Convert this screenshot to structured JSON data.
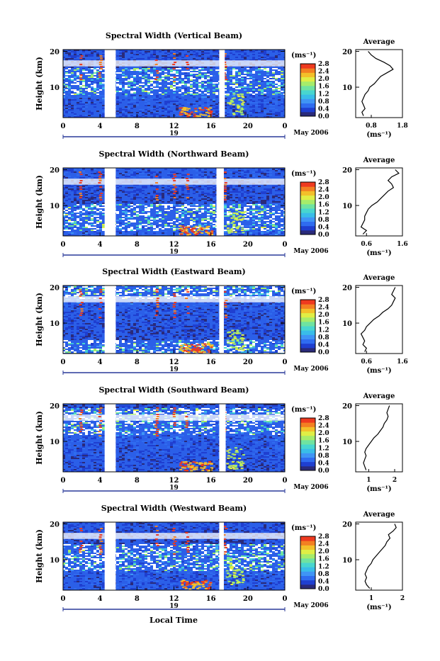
{
  "figure": {
    "xlabel": "Local Time",
    "date_label": "May 2006",
    "day_label": "19",
    "colorbar_unit": "(ms⁻¹)",
    "colorbar_ticks": [
      "0.0",
      "0.4",
      "0.8",
      "1.2",
      "1.6",
      "2.0",
      "2.4",
      "2.8"
    ],
    "avg_title": "Average",
    "avg_xlabel": "(ms⁻¹)",
    "ylabel": "Height (km)"
  },
  "chart_data": [
    {
      "type": "heatmap",
      "title": "Spectral Width (Vertical Beam)",
      "xlabel": "Local Time",
      "ylabel": "Height (km)",
      "x_ticks": [
        "0",
        "4",
        "8",
        "12",
        "16",
        "20",
        "0"
      ],
      "y_ticks": [
        "10",
        "20"
      ],
      "xlim": [
        0,
        24
      ],
      "ylim": [
        1.5,
        20.5
      ],
      "gaps": [
        [
          4.5,
          5.7
        ],
        [
          16.9,
          17.5
        ]
      ],
      "zrange": [
        0.0,
        2.8
      ],
      "average_profile": {
        "x_ticks": [
          "0.8",
          "1.8"
        ],
        "xlim": [
          0.3,
          1.8
        ],
        "height": [
          2,
          3,
          4,
          5,
          6,
          7,
          8,
          9,
          10,
          11,
          12,
          13,
          14,
          15,
          16,
          17,
          18,
          19,
          20
        ],
        "values": [
          0.55,
          0.5,
          0.6,
          0.55,
          0.5,
          0.55,
          0.6,
          0.7,
          0.75,
          0.9,
          1.0,
          1.1,
          1.3,
          1.5,
          1.4,
          1.2,
          0.95,
          0.8,
          0.7
        ]
      }
    },
    {
      "type": "heatmap",
      "title": "Spectral Width (Northward Beam)",
      "xlabel": "Local Time",
      "ylabel": "Height (km)",
      "x_ticks": [
        "0",
        "4",
        "8",
        "12",
        "16",
        "20",
        "0"
      ],
      "y_ticks": [
        "10",
        "20"
      ],
      "xlim": [
        0,
        24
      ],
      "ylim": [
        1.5,
        20.5
      ],
      "gaps": [
        [
          4.5,
          5.7
        ],
        [
          16.6,
          17.4
        ]
      ],
      "zrange": [
        0.0,
        2.8
      ],
      "average_profile": {
        "x_ticks": [
          "0.6",
          "1.6"
        ],
        "xlim": [
          0.3,
          1.6
        ],
        "height": [
          2,
          3,
          4,
          5,
          6,
          7,
          8,
          9,
          10,
          11,
          12,
          13,
          14,
          15,
          16,
          17,
          18,
          19,
          20
        ],
        "values": [
          0.5,
          0.6,
          0.45,
          0.5,
          0.55,
          0.55,
          0.6,
          0.65,
          0.75,
          0.9,
          1.0,
          1.1,
          1.2,
          1.35,
          1.3,
          1.2,
          1.3,
          1.5,
          1.4
        ]
      }
    },
    {
      "type": "heatmap",
      "title": "Spectral Width (Eastward Beam)",
      "xlabel": "Local Time",
      "ylabel": "Height (km)",
      "x_ticks": [
        "0",
        "4",
        "8",
        "12",
        "16",
        "20",
        "0"
      ],
      "y_ticks": [
        "10",
        "20"
      ],
      "xlim": [
        0,
        24
      ],
      "ylim": [
        1.5,
        20.5
      ],
      "gaps": [
        [
          4.5,
          5.7
        ],
        [
          16.9,
          17.4
        ]
      ],
      "zrange": [
        0.0,
        2.8
      ],
      "average_profile": {
        "x_ticks": [
          "0.6",
          "1.6"
        ],
        "xlim": [
          0.3,
          1.6
        ],
        "height": [
          2,
          3,
          4,
          5,
          6,
          7,
          8,
          9,
          10,
          11,
          12,
          13,
          14,
          15,
          16,
          17,
          18,
          19,
          20
        ],
        "values": [
          0.55,
          0.6,
          0.5,
          0.55,
          0.5,
          0.45,
          0.55,
          0.6,
          0.7,
          0.8,
          0.95,
          1.05,
          1.2,
          1.3,
          1.35,
          1.4,
          1.3,
          1.35,
          1.4
        ]
      }
    },
    {
      "type": "heatmap",
      "title": "Spectral Width (Southward Beam)",
      "xlabel": "Local Time",
      "ylabel": "Height (km)",
      "x_ticks": [
        "0",
        "4",
        "8",
        "12",
        "16",
        "20",
        "0"
      ],
      "y_ticks": [
        "10",
        "20"
      ],
      "xlim": [
        0,
        24
      ],
      "ylim": [
        1.5,
        20.5
      ],
      "gaps": [
        [
          4.5,
          5.7
        ],
        [
          16.9,
          17.6
        ]
      ],
      "zrange": [
        0.0,
        2.8
      ],
      "average_profile": {
        "x_ticks": [
          "1",
          "2"
        ],
        "xlim": [
          0.5,
          2.3
        ],
        "height": [
          2,
          3,
          4,
          5,
          6,
          7,
          8,
          9,
          10,
          11,
          12,
          13,
          14,
          15,
          16,
          17,
          18,
          19,
          20
        ],
        "values": [
          0.9,
          0.85,
          0.8,
          0.85,
          0.9,
          0.85,
          0.9,
          1.0,
          1.1,
          1.2,
          1.35,
          1.45,
          1.55,
          1.6,
          1.7,
          1.75,
          1.7,
          1.75,
          1.8
        ]
      }
    },
    {
      "type": "heatmap",
      "title": "Spectral Width (Westward Beam)",
      "xlabel": "Local Time",
      "ylabel": "Height (km)",
      "x_ticks": [
        "0",
        "4",
        "8",
        "12",
        "16",
        "20",
        "0"
      ],
      "y_ticks": [
        "10",
        "20"
      ],
      "xlim": [
        0,
        24
      ],
      "ylim": [
        1.5,
        20.5
      ],
      "gaps": [
        [
          4.5,
          5.7
        ],
        [
          16.9,
          17.4
        ]
      ],
      "zrange": [
        0.0,
        2.8
      ],
      "average_profile": {
        "x_ticks": [
          "1",
          "2"
        ],
        "xlim": [
          0.5,
          2.0
        ],
        "height": [
          2,
          3,
          4,
          5,
          6,
          7,
          8,
          9,
          10,
          11,
          12,
          13,
          14,
          15,
          16,
          17,
          18,
          19,
          20
        ],
        "values": [
          0.95,
          0.85,
          0.8,
          0.85,
          0.8,
          0.85,
          0.9,
          1.0,
          1.05,
          1.15,
          1.25,
          1.35,
          1.45,
          1.5,
          1.6,
          1.55,
          1.7,
          1.8,
          1.75
        ]
      }
    }
  ]
}
